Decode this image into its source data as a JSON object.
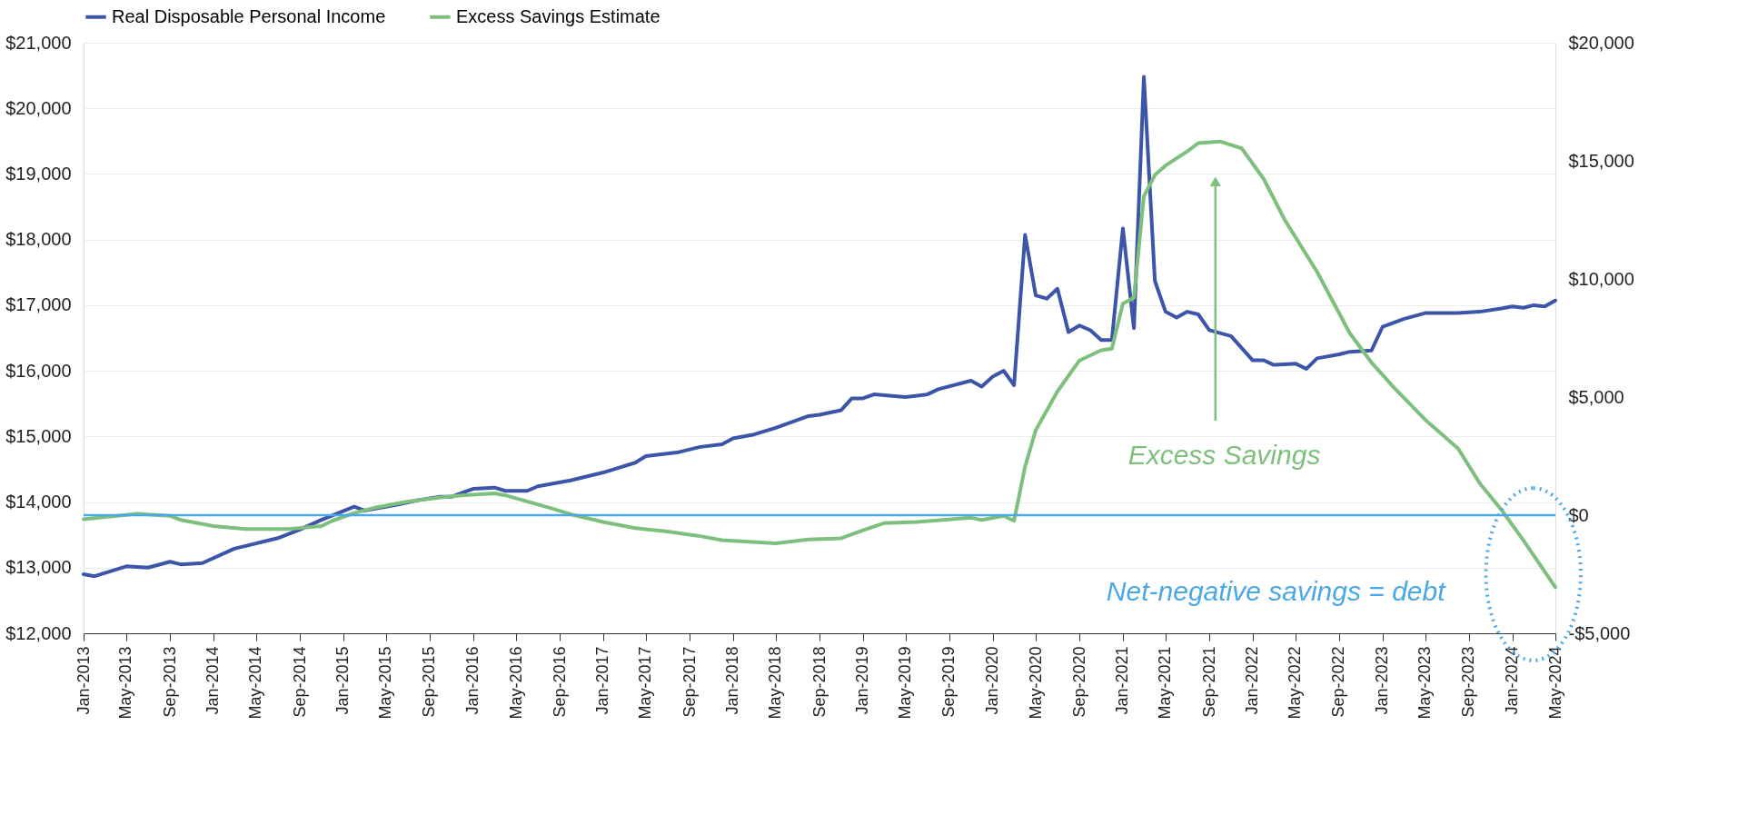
{
  "chart_data": {
    "type": "line",
    "legend": "top",
    "grid": "y",
    "xlim": [
      "2013-01",
      "2024-05"
    ],
    "xticks": [
      {
        "value": "2013-01",
        "label": "Jan-2013"
      },
      {
        "value": "2013-05",
        "label": "May-2013"
      },
      {
        "value": "2013-09",
        "label": "Sep-2013"
      },
      {
        "value": "2014-01",
        "label": "Jan-2014"
      },
      {
        "value": "2014-05",
        "label": "May-2014"
      },
      {
        "value": "2014-09",
        "label": "Sep-2014"
      },
      {
        "value": "2015-01",
        "label": "Jan-2015"
      },
      {
        "value": "2015-05",
        "label": "May-2015"
      },
      {
        "value": "2015-09",
        "label": "Sep-2015"
      },
      {
        "value": "2016-01",
        "label": "Jan-2016"
      },
      {
        "value": "2016-05",
        "label": "May-2016"
      },
      {
        "value": "2016-09",
        "label": "Sep-2016"
      },
      {
        "value": "2017-01",
        "label": "Jan-2017"
      },
      {
        "value": "2017-05",
        "label": "May-2017"
      },
      {
        "value": "2017-09",
        "label": "Sep-2017"
      },
      {
        "value": "2018-01",
        "label": "Jan-2018"
      },
      {
        "value": "2018-05",
        "label": "May-2018"
      },
      {
        "value": "2018-09",
        "label": "Sep-2018"
      },
      {
        "value": "2019-01",
        "label": "Jan-2019"
      },
      {
        "value": "2019-05",
        "label": "May-2019"
      },
      {
        "value": "2019-09",
        "label": "Sep-2019"
      },
      {
        "value": "2020-01",
        "label": "Jan-2020"
      },
      {
        "value": "2020-05",
        "label": "May-2020"
      },
      {
        "value": "2020-09",
        "label": "Sep-2020"
      },
      {
        "value": "2021-01",
        "label": "Jan-2021"
      },
      {
        "value": "2021-05",
        "label": "May-2021"
      },
      {
        "value": "2021-09",
        "label": "Sep-2021"
      },
      {
        "value": "2022-01",
        "label": "Jan-2022"
      },
      {
        "value": "2022-05",
        "label": "May-2022"
      },
      {
        "value": "2022-09",
        "label": "Sep-2022"
      },
      {
        "value": "2023-01",
        "label": "Jan-2023"
      },
      {
        "value": "2023-05",
        "label": "May-2023"
      },
      {
        "value": "2023-09",
        "label": "Sep-2023"
      },
      {
        "value": "2024-01",
        "label": "Jan-2024"
      },
      {
        "value": "2024-05",
        "label": "May-2024"
      }
    ],
    "ylim": [
      12000,
      21000
    ],
    "yticks": [
      {
        "value": 12000,
        "label": "$12,000"
      },
      {
        "value": 13000,
        "label": "$13,000"
      },
      {
        "value": 14000,
        "label": "$14,000"
      },
      {
        "value": 15000,
        "label": "$15,000"
      },
      {
        "value": 16000,
        "label": "$16,000"
      },
      {
        "value": 17000,
        "label": "$17,000"
      },
      {
        "value": 18000,
        "label": "$18,000"
      },
      {
        "value": 19000,
        "label": "$19,000"
      },
      {
        "value": 20000,
        "label": "$20,000"
      },
      {
        "value": 21000,
        "label": "$21,000"
      }
    ],
    "y2lim": [
      -5000,
      20000
    ],
    "y2ticks": [
      {
        "value": -5000,
        "label": "-$5,000"
      },
      {
        "value": 0,
        "label": "$0"
      },
      {
        "value": 5000,
        "label": "$5,000"
      },
      {
        "value": 10000,
        "label": "$10,000"
      },
      {
        "value": 15000,
        "label": "$15,000"
      },
      {
        "value": 20000,
        "label": "$20,000"
      }
    ],
    "series": [
      {
        "name": "Real Disposable Personal Income",
        "color": "#3c55a8",
        "x": [
          "2013-01",
          "2013-02",
          "2013-05",
          "2013-07",
          "2013-09",
          "2013-10",
          "2013-12",
          "2014-03",
          "2014-07",
          "2014-09",
          "2014-11",
          "2015-02",
          "2015-03",
          "2015-06",
          "2015-08",
          "2015-10",
          "2015-11",
          "2016-01",
          "2016-03",
          "2016-04",
          "2016-06",
          "2016-07",
          "2016-10",
          "2017-01",
          "2017-04",
          "2017-05",
          "2017-08",
          "2017-10",
          "2017-12",
          "2018-01",
          "2018-03",
          "2018-05",
          "2018-08",
          "2018-09",
          "2018-11",
          "2018-12",
          "2019-01",
          "2019-02",
          "2019-05",
          "2019-07",
          "2019-08",
          "2019-11",
          "2019-12",
          "2020-01",
          "2020-02",
          "2020-03",
          "2020-04",
          "2020-05",
          "2020-06",
          "2020-07",
          "2020-08",
          "2020-09",
          "2020-10",
          "2020-11",
          "2020-12",
          "2021-01",
          "2021-02",
          "2021-03",
          "2021-04",
          "2021-05",
          "2021-06",
          "2021-07",
          "2021-08",
          "2021-09",
          "2021-11",
          "2022-01",
          "2022-02",
          "2022-03",
          "2022-04",
          "2022-05",
          "2022-06",
          "2022-07",
          "2022-09",
          "2022-10",
          "2022-12",
          "2023-01",
          "2023-03",
          "2023-05",
          "2023-08",
          "2023-10",
          "2023-12",
          "2024-01",
          "2024-02",
          "2024-03",
          "2024-04",
          "2024-05"
        ],
        "values": [
          12900,
          12870,
          13020,
          13000,
          13090,
          13050,
          13070,
          13290,
          13450,
          13580,
          13730,
          13930,
          13870,
          13960,
          14030,
          14080,
          14080,
          14200,
          14220,
          14170,
          14170,
          14240,
          14330,
          14450,
          14600,
          14700,
          14760,
          14840,
          14880,
          14970,
          15030,
          15130,
          15310,
          15330,
          15400,
          15580,
          15580,
          15640,
          15600,
          15640,
          15720,
          15850,
          15760,
          15910,
          16000,
          15780,
          18070,
          17150,
          17100,
          17250,
          16590,
          16690,
          16620,
          16470,
          16470,
          18170,
          16650,
          20480,
          17370,
          16900,
          16810,
          16900,
          16860,
          16620,
          16530,
          16160,
          16160,
          16090,
          16100,
          16110,
          16030,
          16190,
          16250,
          16290,
          16310,
          16670,
          16790,
          16880,
          16880,
          16900,
          16950,
          16980,
          16960,
          17000,
          16980,
          17070
        ]
      },
      {
        "name": "Excess Savings Estimate",
        "color": "#7dbf7d",
        "axis": "y2",
        "x": [
          "2013-01",
          "2013-06",
          "2013-09",
          "2013-10",
          "2014-01",
          "2014-04",
          "2014-08",
          "2014-11",
          "2014-12",
          "2015-02",
          "2015-04",
          "2015-07",
          "2015-10",
          "2015-12",
          "2016-03",
          "2016-04",
          "2016-06",
          "2016-08",
          "2016-10",
          "2017-01",
          "2017-04",
          "2017-07",
          "2017-10",
          "2017-12",
          "2018-05",
          "2018-08",
          "2018-11",
          "2019-01",
          "2019-03",
          "2019-06",
          "2019-11",
          "2019-12",
          "2020-02",
          "2020-03",
          "2020-04",
          "2020-05",
          "2020-07",
          "2020-09",
          "2020-11",
          "2020-12",
          "2021-01",
          "2021-02",
          "2021-03",
          "2021-04",
          "2021-05",
          "2021-07",
          "2021-08",
          "2021-10",
          "2021-12",
          "2022-02",
          "2022-04",
          "2022-07",
          "2022-10",
          "2022-12",
          "2023-02",
          "2023-05",
          "2023-08",
          "2023-10",
          "2023-12",
          "2024-02",
          "2024-05"
        ],
        "values": [
          -170,
          60,
          -30,
          -200,
          -460,
          -590,
          -590,
          -460,
          -240,
          90,
          320,
          580,
          750,
          840,
          920,
          840,
          580,
          320,
          40,
          -290,
          -550,
          -690,
          -890,
          -1060,
          -1190,
          -1030,
          -980,
          -640,
          -340,
          -290,
          -110,
          -200,
          -30,
          -240,
          2050,
          3600,
          5240,
          6550,
          6980,
          7050,
          8950,
          9210,
          13500,
          14400,
          14800,
          15400,
          15750,
          15820,
          15530,
          14230,
          12500,
          10300,
          7700,
          6460,
          5420,
          4040,
          2830,
          1360,
          230,
          -1060,
          -3050
        ]
      }
    ],
    "ref_lines": [
      {
        "axis": "y2",
        "value": 0,
        "color": "#4aa8e8"
      }
    ],
    "annotations": [
      "Excess Savings",
      "Net-negative savings = debt"
    ]
  }
}
